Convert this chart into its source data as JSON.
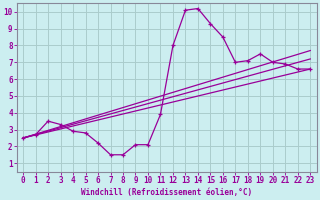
{
  "xlabel": "Windchill (Refroidissement éolien,°C)",
  "bg_color": "#cceef0",
  "line_color": "#990099",
  "grid_color": "#aacccc",
  "axis_color": "#888899",
  "xlim": [
    -0.5,
    23.5
  ],
  "ylim": [
    0.5,
    10.5
  ],
  "xticks": [
    0,
    1,
    2,
    3,
    4,
    5,
    6,
    7,
    8,
    9,
    10,
    11,
    12,
    13,
    14,
    15,
    16,
    17,
    18,
    19,
    20,
    21,
    22,
    23
  ],
  "yticks": [
    1,
    2,
    3,
    4,
    5,
    6,
    7,
    8,
    9,
    10
  ],
  "line1_x": [
    0,
    1,
    2,
    3,
    4,
    5,
    6,
    7,
    8,
    9,
    10,
    11,
    12,
    13,
    14,
    15,
    16,
    17,
    18,
    19,
    20,
    21,
    22,
    23
  ],
  "line1_y": [
    2.5,
    2.7,
    3.5,
    3.3,
    2.9,
    2.8,
    2.2,
    1.5,
    1.5,
    2.1,
    2.1,
    3.9,
    8.0,
    10.1,
    10.2,
    9.3,
    8.5,
    7.0,
    7.1,
    7.5,
    7.0,
    6.9,
    6.6,
    6.6
  ],
  "straight_lines": [
    {
      "x0": 0,
      "y0": 2.5,
      "x1": 23,
      "y1": 6.6
    },
    {
      "x0": 0,
      "y0": 2.5,
      "x1": 23,
      "y1": 7.2
    },
    {
      "x0": 0,
      "y0": 2.5,
      "x1": 23,
      "y1": 7.7
    }
  ],
  "font_family": "monospace"
}
